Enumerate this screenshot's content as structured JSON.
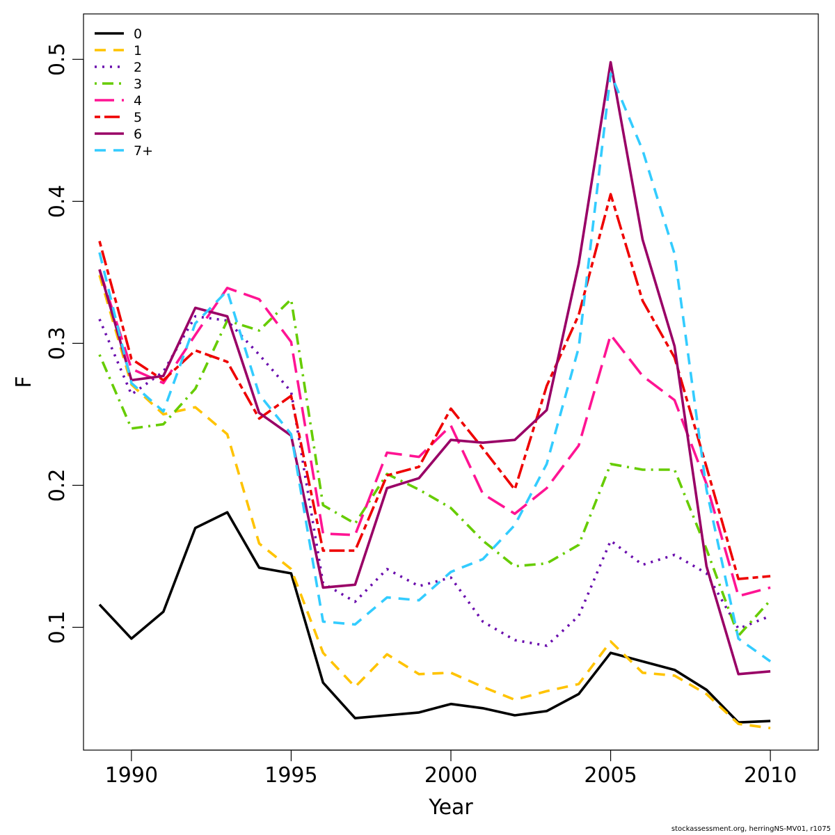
{
  "chart_data": {
    "type": "line",
    "xlabel": "Year",
    "ylabel": "F",
    "xlim": [
      1988.5,
      2011.5
    ],
    "ylim": [
      0.0135,
      0.532
    ],
    "x_ticks": [
      1990,
      1995,
      2000,
      2005,
      2010
    ],
    "y_ticks": [
      0.1,
      0.2,
      0.3,
      0.4,
      0.5
    ],
    "legend_position": "top-left",
    "x": [
      1989,
      1990,
      1991,
      1992,
      1993,
      1994,
      1995,
      1996,
      1997,
      1998,
      1999,
      2000,
      2001,
      2002,
      2003,
      2004,
      2005,
      2006,
      2007,
      2008,
      2009,
      2010
    ],
    "series": [
      {
        "name": "0",
        "color": "#000000",
        "dash": "solid",
        "values": [
          0.116,
          0.092,
          0.111,
          0.17,
          0.181,
          0.142,
          0.138,
          0.061,
          0.036,
          0.038,
          0.04,
          0.046,
          0.043,
          0.038,
          0.041,
          0.053,
          0.082,
          0.076,
          0.07,
          0.056,
          0.033,
          0.034
        ]
      },
      {
        "name": "1",
        "color": "#FFC300",
        "dash": "dashed",
        "values": [
          0.348,
          0.271,
          0.25,
          0.255,
          0.236,
          0.159,
          0.141,
          0.082,
          0.058,
          0.081,
          0.067,
          0.068,
          0.058,
          0.049,
          0.055,
          0.06,
          0.09,
          0.068,
          0.066,
          0.053,
          0.032,
          0.029
        ]
      },
      {
        "name": "2",
        "color": "#6A0DAD",
        "dash": "dotted",
        "values": [
          0.317,
          0.264,
          0.28,
          0.319,
          0.316,
          0.292,
          0.266,
          0.131,
          0.118,
          0.141,
          0.129,
          0.135,
          0.104,
          0.091,
          0.087,
          0.108,
          0.161,
          0.144,
          0.151,
          0.138,
          0.099,
          0.108
        ]
      },
      {
        "name": "3",
        "color": "#66CC00",
        "dash": "dotdash",
        "values": [
          0.292,
          0.24,
          0.243,
          0.268,
          0.316,
          0.309,
          0.331,
          0.186,
          0.173,
          0.208,
          0.197,
          0.184,
          0.161,
          0.143,
          0.145,
          0.158,
          0.215,
          0.211,
          0.211,
          0.155,
          0.094,
          0.119
        ]
      },
      {
        "name": "4",
        "color": "#FF1493",
        "dash": "longdash",
        "values": [
          0.352,
          0.282,
          0.272,
          0.306,
          0.339,
          0.331,
          0.301,
          0.166,
          0.165,
          0.223,
          0.22,
          0.242,
          0.194,
          0.18,
          0.198,
          0.228,
          0.306,
          0.277,
          0.26,
          0.201,
          0.122,
          0.128
        ]
      },
      {
        "name": "5",
        "color": "#EE0000",
        "dash": "twodash",
        "values": [
          0.372,
          0.289,
          0.274,
          0.295,
          0.287,
          0.247,
          0.263,
          0.154,
          0.154,
          0.207,
          0.213,
          0.254,
          0.226,
          0.197,
          0.27,
          0.32,
          0.405,
          0.33,
          0.29,
          0.213,
          0.134,
          0.136
        ]
      },
      {
        "name": "6",
        "color": "#990066",
        "dash": "solid",
        "values": [
          0.352,
          0.274,
          0.277,
          0.325,
          0.319,
          0.251,
          0.235,
          0.128,
          0.13,
          0.198,
          0.205,
          0.232,
          0.23,
          0.232,
          0.253,
          0.356,
          0.498,
          0.373,
          0.298,
          0.143,
          0.067,
          0.069
        ]
      },
      {
        "name": "7+",
        "color": "#33CCFF",
        "dash": "dashed",
        "values": [
          0.364,
          0.272,
          0.252,
          0.314,
          0.337,
          0.264,
          0.236,
          0.104,
          0.102,
          0.121,
          0.119,
          0.139,
          0.148,
          0.172,
          0.215,
          0.297,
          0.49,
          0.436,
          0.363,
          0.197,
          0.092,
          0.076
        ]
      }
    ]
  },
  "credit": "stockassessment.org, herringNS-MV01, r1075"
}
